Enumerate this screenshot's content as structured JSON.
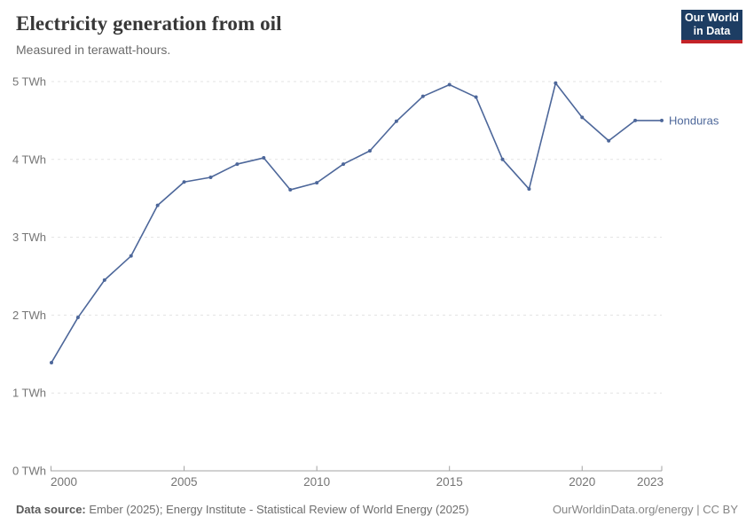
{
  "header": {
    "title": "Electricity generation from oil",
    "subtitle": "Measured in terawatt-hours.",
    "logo": {
      "line1": "Our World",
      "line2": "in Data",
      "bg_color": "#1d3d63",
      "accent_color": "#c32328"
    }
  },
  "chart_data": {
    "type": "line",
    "title": "Electricity generation from oil",
    "subtitle": "Measured in terawatt-hours.",
    "x": [
      2000,
      2001,
      2002,
      2003,
      2004,
      2005,
      2006,
      2007,
      2008,
      2009,
      2010,
      2011,
      2012,
      2013,
      2014,
      2015,
      2016,
      2017,
      2018,
      2019,
      2020,
      2021,
      2022,
      2023
    ],
    "series": [
      {
        "name": "Honduras",
        "color": "#4d679a",
        "values": [
          1.39,
          1.97,
          2.45,
          2.76,
          3.41,
          3.71,
          3.77,
          3.94,
          4.02,
          3.61,
          3.7,
          3.94,
          4.11,
          4.49,
          4.81,
          4.96,
          4.8,
          4.0,
          3.62,
          4.98,
          4.54,
          4.24,
          4.5,
          4.5
        ]
      }
    ],
    "xlim": [
      2000,
      2023
    ],
    "ylim": [
      0,
      5
    ],
    "xticks": [
      2000,
      2005,
      2010,
      2015,
      2020,
      2023
    ],
    "yticks": [
      0,
      1,
      2,
      3,
      4,
      5
    ],
    "ytick_suffix": " TWh",
    "grid": "horizontal-dashed",
    "legend_position": "end-of-line-label",
    "colors": {
      "gridline": "#e3e3e3",
      "axis_line": "#a3a3a3",
      "tick_mark": "#a3a3a3",
      "axis_label": "#757575"
    }
  },
  "footer": {
    "source_label": "Data source:",
    "source_text": "Ember (2025); Energy Institute - Statistical Review of World Energy (2025)",
    "credit": "OurWorldinData.org/energy | CC BY"
  }
}
